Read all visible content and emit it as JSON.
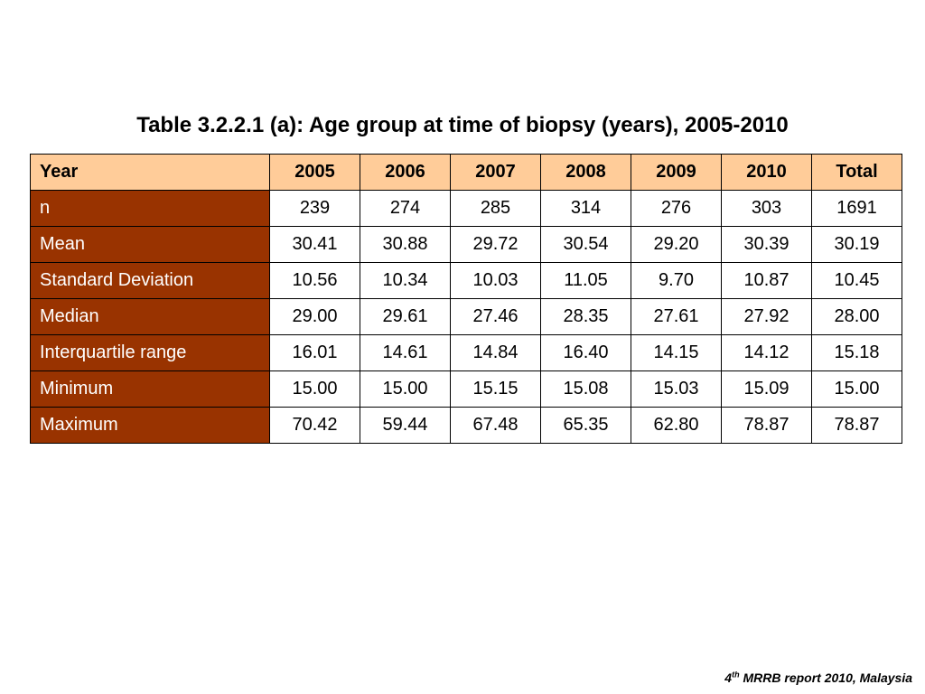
{
  "title": "Table 3.2.2.1 (a): Age group at time of biopsy (years), 2005-2010",
  "table": {
    "headers": [
      "Year",
      "2005",
      "2006",
      "2007",
      "2008",
      "2009",
      "2010",
      "Total"
    ],
    "rows": [
      {
        "label": "n",
        "values": [
          "239",
          "274",
          "285",
          "314",
          "276",
          "303",
          "1691"
        ]
      },
      {
        "label": "Mean",
        "values": [
          "30.41",
          "30.88",
          "29.72",
          "30.54",
          "29.20",
          "30.39",
          "30.19"
        ]
      },
      {
        "label": "Standard Deviation",
        "values": [
          "10.56",
          "10.34",
          "10.03",
          "11.05",
          "9.70",
          "10.87",
          "10.45"
        ]
      },
      {
        "label": "Median",
        "values": [
          "29.00",
          "29.61",
          "27.46",
          "28.35",
          "27.61",
          "27.92",
          "28.00"
        ]
      },
      {
        "label": "Interquartile range",
        "values": [
          "16.01",
          "14.61",
          "14.84",
          "16.40",
          "14.15",
          "14.12",
          "15.18"
        ]
      },
      {
        "label": "Minimum",
        "values": [
          "15.00",
          "15.00",
          "15.15",
          "15.08",
          "15.03",
          "15.09",
          "15.00"
        ]
      },
      {
        "label": "Maximum",
        "values": [
          "70.42",
          "59.44",
          "67.48",
          "65.35",
          "62.80",
          "78.87",
          "78.87"
        ]
      }
    ]
  },
  "footer": {
    "number": "4",
    "superscript": "th",
    "text": " MRRB report 2010, Malaysia"
  },
  "colors": {
    "header_bg": "#ffcc99",
    "row_label_bg": "#993300",
    "row_label_text": "#ffffff"
  }
}
